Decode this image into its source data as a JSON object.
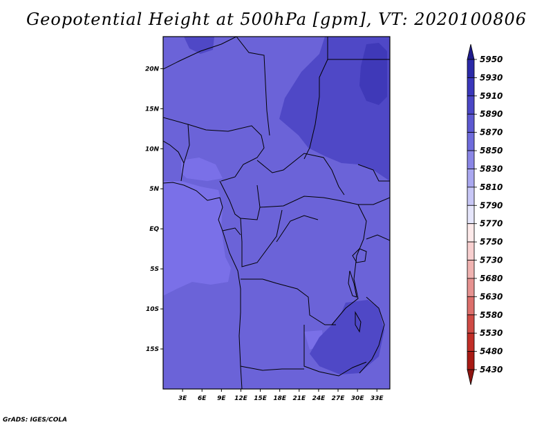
{
  "title": "Geopotential Height at 500hPa [gpm], VT: 2020100806",
  "credit": "GrADS: IGES/COLA",
  "map": {
    "lon_range": [
      0,
      35
    ],
    "lat_range": [
      -20,
      24
    ],
    "x_ticks": [
      "3E",
      "6E",
      "9E",
      "12E",
      "15E",
      "18E",
      "21E",
      "24E",
      "27E",
      "30E",
      "33E"
    ],
    "x_tick_values": [
      3,
      6,
      9,
      12,
      15,
      18,
      21,
      24,
      27,
      30,
      33
    ],
    "y_ticks": [
      "20N",
      "15N",
      "10N",
      "5N",
      "EQ",
      "5S",
      "10S",
      "15S"
    ],
    "y_tick_values": [
      20,
      15,
      10,
      5,
      0,
      -5,
      -10,
      -15
    ]
  },
  "colorbar": {
    "levels": [
      "5950",
      "5930",
      "5910",
      "5890",
      "5870",
      "5850",
      "5830",
      "5810",
      "5790",
      "5770",
      "5750",
      "5730",
      "5680",
      "5630",
      "5580",
      "5530",
      "5480",
      "5430"
    ],
    "colors": [
      "#1f1c8c",
      "#2b2aa8",
      "#3a37bb",
      "#4b47c6",
      "#5d59d1",
      "#6f6cdc",
      "#8a86e6",
      "#aaa8f0",
      "#c8c7f6",
      "#e6e6fb",
      "#fdeaea",
      "#f8d0d0",
      "#f0b3b1",
      "#e69290",
      "#dc6f6b",
      "#cf4b45",
      "#c12e27",
      "#a81a14",
      "#8e1410"
    ]
  },
  "field_colors": {
    "base": "#6b63d8",
    "low": "#7a70e8",
    "high": "#4f48c6",
    "higher": "#3f39b8"
  }
}
